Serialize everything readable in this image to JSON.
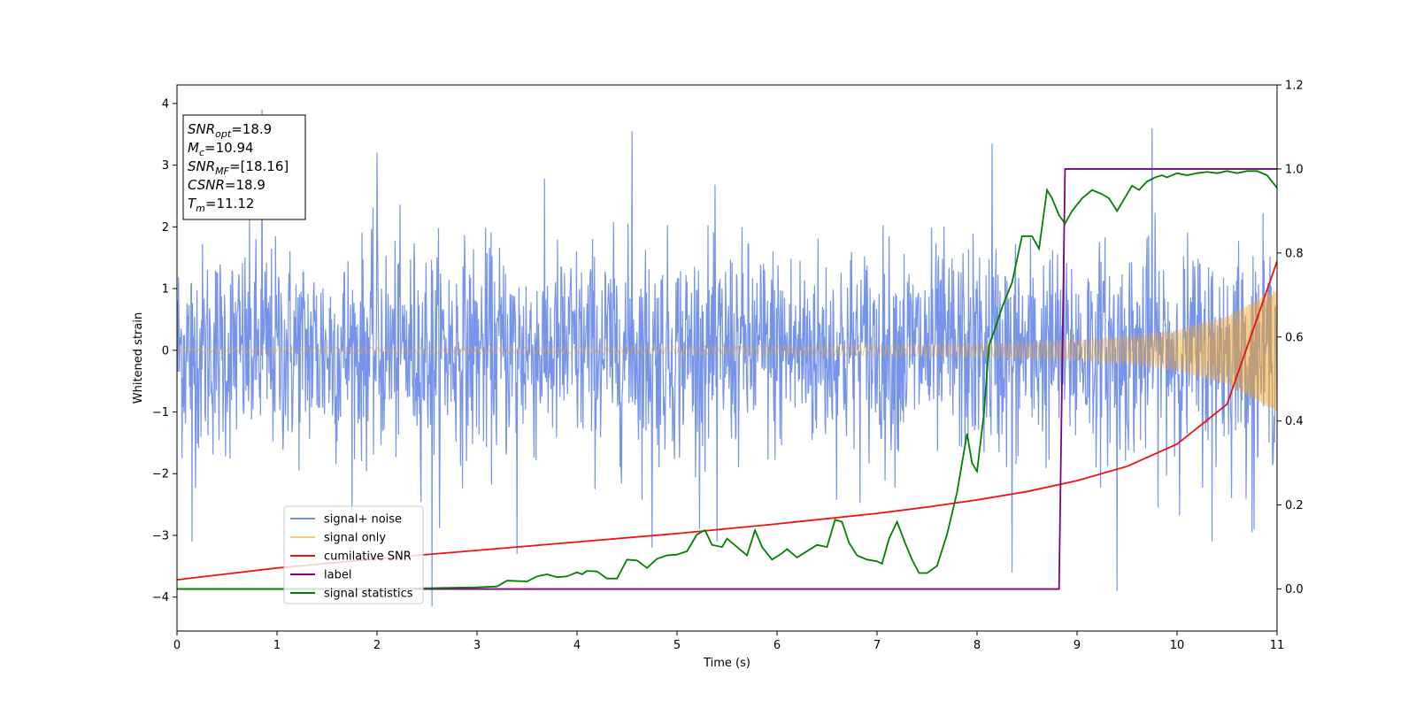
{
  "chart_data": {
    "type": "line",
    "xlabel": "Time (s)",
    "ylabel_left": "Whitened strain",
    "ylabel_right": "",
    "xlim": [
      0,
      11
    ],
    "ylim_left": [
      -4.55,
      4.3
    ],
    "ylim_right": [
      -0.1,
      1.2
    ],
    "x_ticks": [
      0,
      1,
      2,
      3,
      4,
      5,
      6,
      7,
      8,
      9,
      10,
      11
    ],
    "y_ticks_left": [
      -4,
      -3,
      -2,
      -1,
      0,
      1,
      2,
      3,
      4
    ],
    "y_ticks_right": [
      0.0,
      0.2,
      0.4,
      0.6,
      0.8,
      1.0,
      1.2
    ],
    "grid": false,
    "legend_position": "lower-left",
    "annotation_box": {
      "lines": [
        {
          "base": "SNR",
          "sub": "opt",
          "rest": "=18.9"
        },
        {
          "base": "M",
          "sub": "c",
          "rest": "=10.94"
        },
        {
          "base": "SNR",
          "sub": "MF",
          "rest": "=[18.16]"
        },
        {
          "base": "CSNR",
          "sub": "",
          "rest": "=18.9"
        },
        {
          "base": "T",
          "sub": "m",
          "rest": "=11.12"
        }
      ]
    },
    "series": [
      {
        "name": "signal+ noise",
        "axis": "left",
        "color": "#6f8ee8",
        "noise_band": {
          "sigma": 0.85,
          "min": -4.15,
          "max": 3.9,
          "t_start": 0,
          "t_end": 11,
          "samples": 2200
        },
        "spikes": [
          {
            "x": 0.85,
            "y": 3.9
          },
          {
            "x": 2.0,
            "y": 3.2
          },
          {
            "x": 4.55,
            "y": 3.55
          },
          {
            "x": 8.15,
            "y": 3.35
          },
          {
            "x": 9.75,
            "y": 3.6
          },
          {
            "x": 0.15,
            "y": -3.1
          },
          {
            "x": 2.55,
            "y": -4.15
          },
          {
            "x": 3.4,
            "y": -3.3
          },
          {
            "x": 4.75,
            "y": -3.2
          },
          {
            "x": 5.4,
            "y": -3.1
          },
          {
            "x": 8.35,
            "y": -3.6
          },
          {
            "x": 9.4,
            "y": -3.9
          },
          {
            "x": 10.35,
            "y": -3.1
          },
          {
            "x": 10.75,
            "y": -2.95
          }
        ]
      },
      {
        "name": "signal only",
        "axis": "left",
        "color": "#f5a623",
        "chirp_envelope": {
          "t": [
            0,
            2,
            4,
            6,
            7,
            8,
            9,
            9.5,
            10,
            10.5,
            11
          ],
          "amp": [
            0.04,
            0.05,
            0.06,
            0.08,
            0.09,
            0.11,
            0.16,
            0.22,
            0.33,
            0.55,
            1.0
          ]
        }
      },
      {
        "name": "cumilative SNR",
        "axis": "right",
        "color": "#ee1111",
        "x": [
          0,
          1,
          2,
          3,
          4,
          5,
          6,
          7,
          7.5,
          8,
          8.5,
          9,
          9.5,
          10,
          10.5,
          11
        ],
        "y": [
          0.022,
          0.05,
          0.072,
          0.092,
          0.112,
          0.132,
          0.155,
          0.18,
          0.195,
          0.212,
          0.232,
          0.258,
          0.292,
          0.345,
          0.44,
          0.78
        ]
      },
      {
        "name": "label",
        "axis": "right",
        "color": "#800080",
        "x": [
          0,
          8.82,
          8.88,
          11
        ],
        "y": [
          0.0,
          0.0,
          1.0,
          1.0
        ]
      },
      {
        "name": "signal statistics",
        "axis": "right",
        "color": "#008000",
        "x": [
          0,
          1,
          2,
          2.5,
          3.0,
          3.2,
          3.3,
          3.5,
          3.6,
          3.7,
          3.8,
          3.9,
          4.0,
          4.05,
          4.1,
          4.2,
          4.3,
          4.4,
          4.5,
          4.6,
          4.7,
          4.8,
          4.9,
          5.0,
          5.1,
          5.2,
          5.28,
          5.35,
          5.45,
          5.5,
          5.6,
          5.7,
          5.78,
          5.85,
          5.95,
          6.05,
          6.1,
          6.2,
          6.3,
          6.4,
          6.5,
          6.58,
          6.65,
          6.72,
          6.8,
          6.9,
          7.0,
          7.05,
          7.12,
          7.2,
          7.28,
          7.35,
          7.42,
          7.5,
          7.6,
          7.7,
          7.8,
          7.9,
          7.95,
          8.0,
          8.07,
          8.12,
          8.18,
          8.25,
          8.35,
          8.45,
          8.55,
          8.62,
          8.7,
          8.75,
          8.82,
          8.88,
          8.95,
          9.05,
          9.15,
          9.25,
          9.32,
          9.4,
          9.5,
          9.55,
          9.62,
          9.7,
          9.78,
          9.85,
          9.9,
          10.0,
          10.1,
          10.2,
          10.3,
          10.4,
          10.5,
          10.6,
          10.7,
          10.8,
          10.9,
          11.0
        ],
        "y": [
          0.0,
          0.0,
          0.0,
          0.002,
          0.004,
          0.006,
          0.02,
          0.018,
          0.03,
          0.035,
          0.028,
          0.03,
          0.04,
          0.035,
          0.043,
          0.042,
          0.025,
          0.025,
          0.07,
          0.068,
          0.05,
          0.072,
          0.08,
          0.082,
          0.09,
          0.13,
          0.14,
          0.105,
          0.1,
          0.12,
          0.1,
          0.08,
          0.14,
          0.1,
          0.07,
          0.085,
          0.095,
          0.075,
          0.09,
          0.105,
          0.1,
          0.165,
          0.16,
          0.11,
          0.08,
          0.07,
          0.066,
          0.06,
          0.12,
          0.16,
          0.11,
          0.07,
          0.038,
          0.038,
          0.055,
          0.13,
          0.23,
          0.37,
          0.3,
          0.28,
          0.42,
          0.58,
          0.62,
          0.67,
          0.73,
          0.84,
          0.84,
          0.81,
          0.95,
          0.93,
          0.89,
          0.87,
          0.9,
          0.93,
          0.95,
          0.94,
          0.93,
          0.9,
          0.94,
          0.96,
          0.95,
          0.97,
          0.98,
          0.985,
          0.98,
          0.99,
          0.985,
          0.99,
          0.993,
          0.99,
          0.995,
          0.99,
          0.995,
          0.995,
          0.985,
          0.955
        ]
      }
    ]
  }
}
